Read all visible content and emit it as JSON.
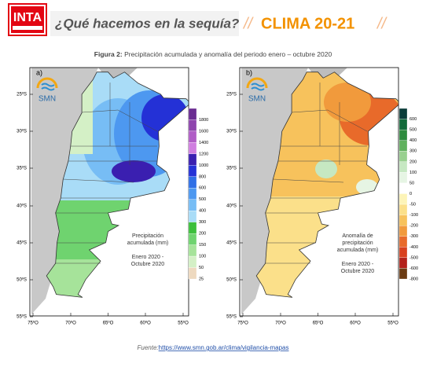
{
  "header": {
    "logo": "INTA",
    "question": "¿Qué hacemos en la sequía?",
    "slash_left": "//",
    "brand": "CLIMA 20-21",
    "slash_right": "//"
  },
  "caption": {
    "label": "Figura 2:",
    "text": "Precipitación acumulada y anomalía del periodo enero – octubre 2020"
  },
  "panels": [
    {
      "label": "a)",
      "logo": "SMN",
      "lat_labels": [
        "25ºS",
        "30ºS",
        "35ºS",
        "40ºS",
        "45ºS",
        "50ºS",
        "55ºS"
      ],
      "lon_labels": [
        "75ºO",
        "70ºO",
        "65ºO",
        "60ºO",
        "55ºO"
      ],
      "legend": [
        {
          "label": "1800",
          "color": "#6a2c91"
        },
        {
          "label": "1600",
          "color": "#8e44ad"
        },
        {
          "label": "1400",
          "color": "#b05cc6"
        },
        {
          "label": "1200",
          "color": "#d07ee0"
        },
        {
          "label": "1000",
          "color": "#3a1fb0"
        },
        {
          "label": "800",
          "color": "#2431d6"
        },
        {
          "label": "600",
          "color": "#2f6fe6"
        },
        {
          "label": "500",
          "color": "#4d98f0"
        },
        {
          "label": "400",
          "color": "#77bdf5"
        },
        {
          "label": "300",
          "color": "#a9dcf7"
        },
        {
          "label": "200",
          "color": "#3cbf3c"
        },
        {
          "label": "150",
          "color": "#6fd36f"
        },
        {
          "label": "100",
          "color": "#a6e39a"
        },
        {
          "label": "50",
          "color": "#d4f0c6"
        },
        {
          "label": "25",
          "color": "#eed9bf"
        }
      ],
      "annotation": [
        "Precipitación",
        "acumulada (mm)",
        "",
        "Enero 2020 -",
        "Octubre 2020"
      ]
    },
    {
      "label": "b)",
      "logo": "SMN",
      "lat_labels": [
        "25ºS",
        "30ºS",
        "35ºS",
        "40ºS",
        "45ºS",
        "50ºS",
        "55ºS"
      ],
      "lon_labels": [
        "75ºO",
        "70ºO",
        "65ºO",
        "60ºO",
        "55ºO"
      ],
      "legend": [
        {
          "label": "600",
          "color": "#0b3d3a"
        },
        {
          "label": "500",
          "color": "#116b3a"
        },
        {
          "label": "400",
          "color": "#2e8b3e"
        },
        {
          "label": "300",
          "color": "#5fb15d"
        },
        {
          "label": "200",
          "color": "#98d08f"
        },
        {
          "label": "100",
          "color": "#c6e8c2"
        },
        {
          "label": "50",
          "color": "#e6f5e4"
        },
        {
          "label": "0",
          "color": "#ffffff"
        },
        {
          "label": "-50",
          "color": "#fdf4b8"
        },
        {
          "label": "-100",
          "color": "#fbe08a"
        },
        {
          "label": "-200",
          "color": "#f7c25c"
        },
        {
          "label": "-300",
          "color": "#f19a3c"
        },
        {
          "label": "-400",
          "color": "#e86a2a"
        },
        {
          "label": "-500",
          "color": "#d8401e"
        },
        {
          "label": "-600",
          "color": "#b3211a"
        },
        {
          "label": "-800",
          "color": "#6b3b12"
        }
      ],
      "annotation": [
        "Anomalía de",
        "precipitación",
        "acumulada (mm)",
        "",
        "Enero 2020 -",
        "Octubre 2020"
      ]
    }
  ],
  "source": {
    "label": "Fuente:",
    "link": "https://www.smn.gob.ar/clima/vigilancia-mapas"
  }
}
